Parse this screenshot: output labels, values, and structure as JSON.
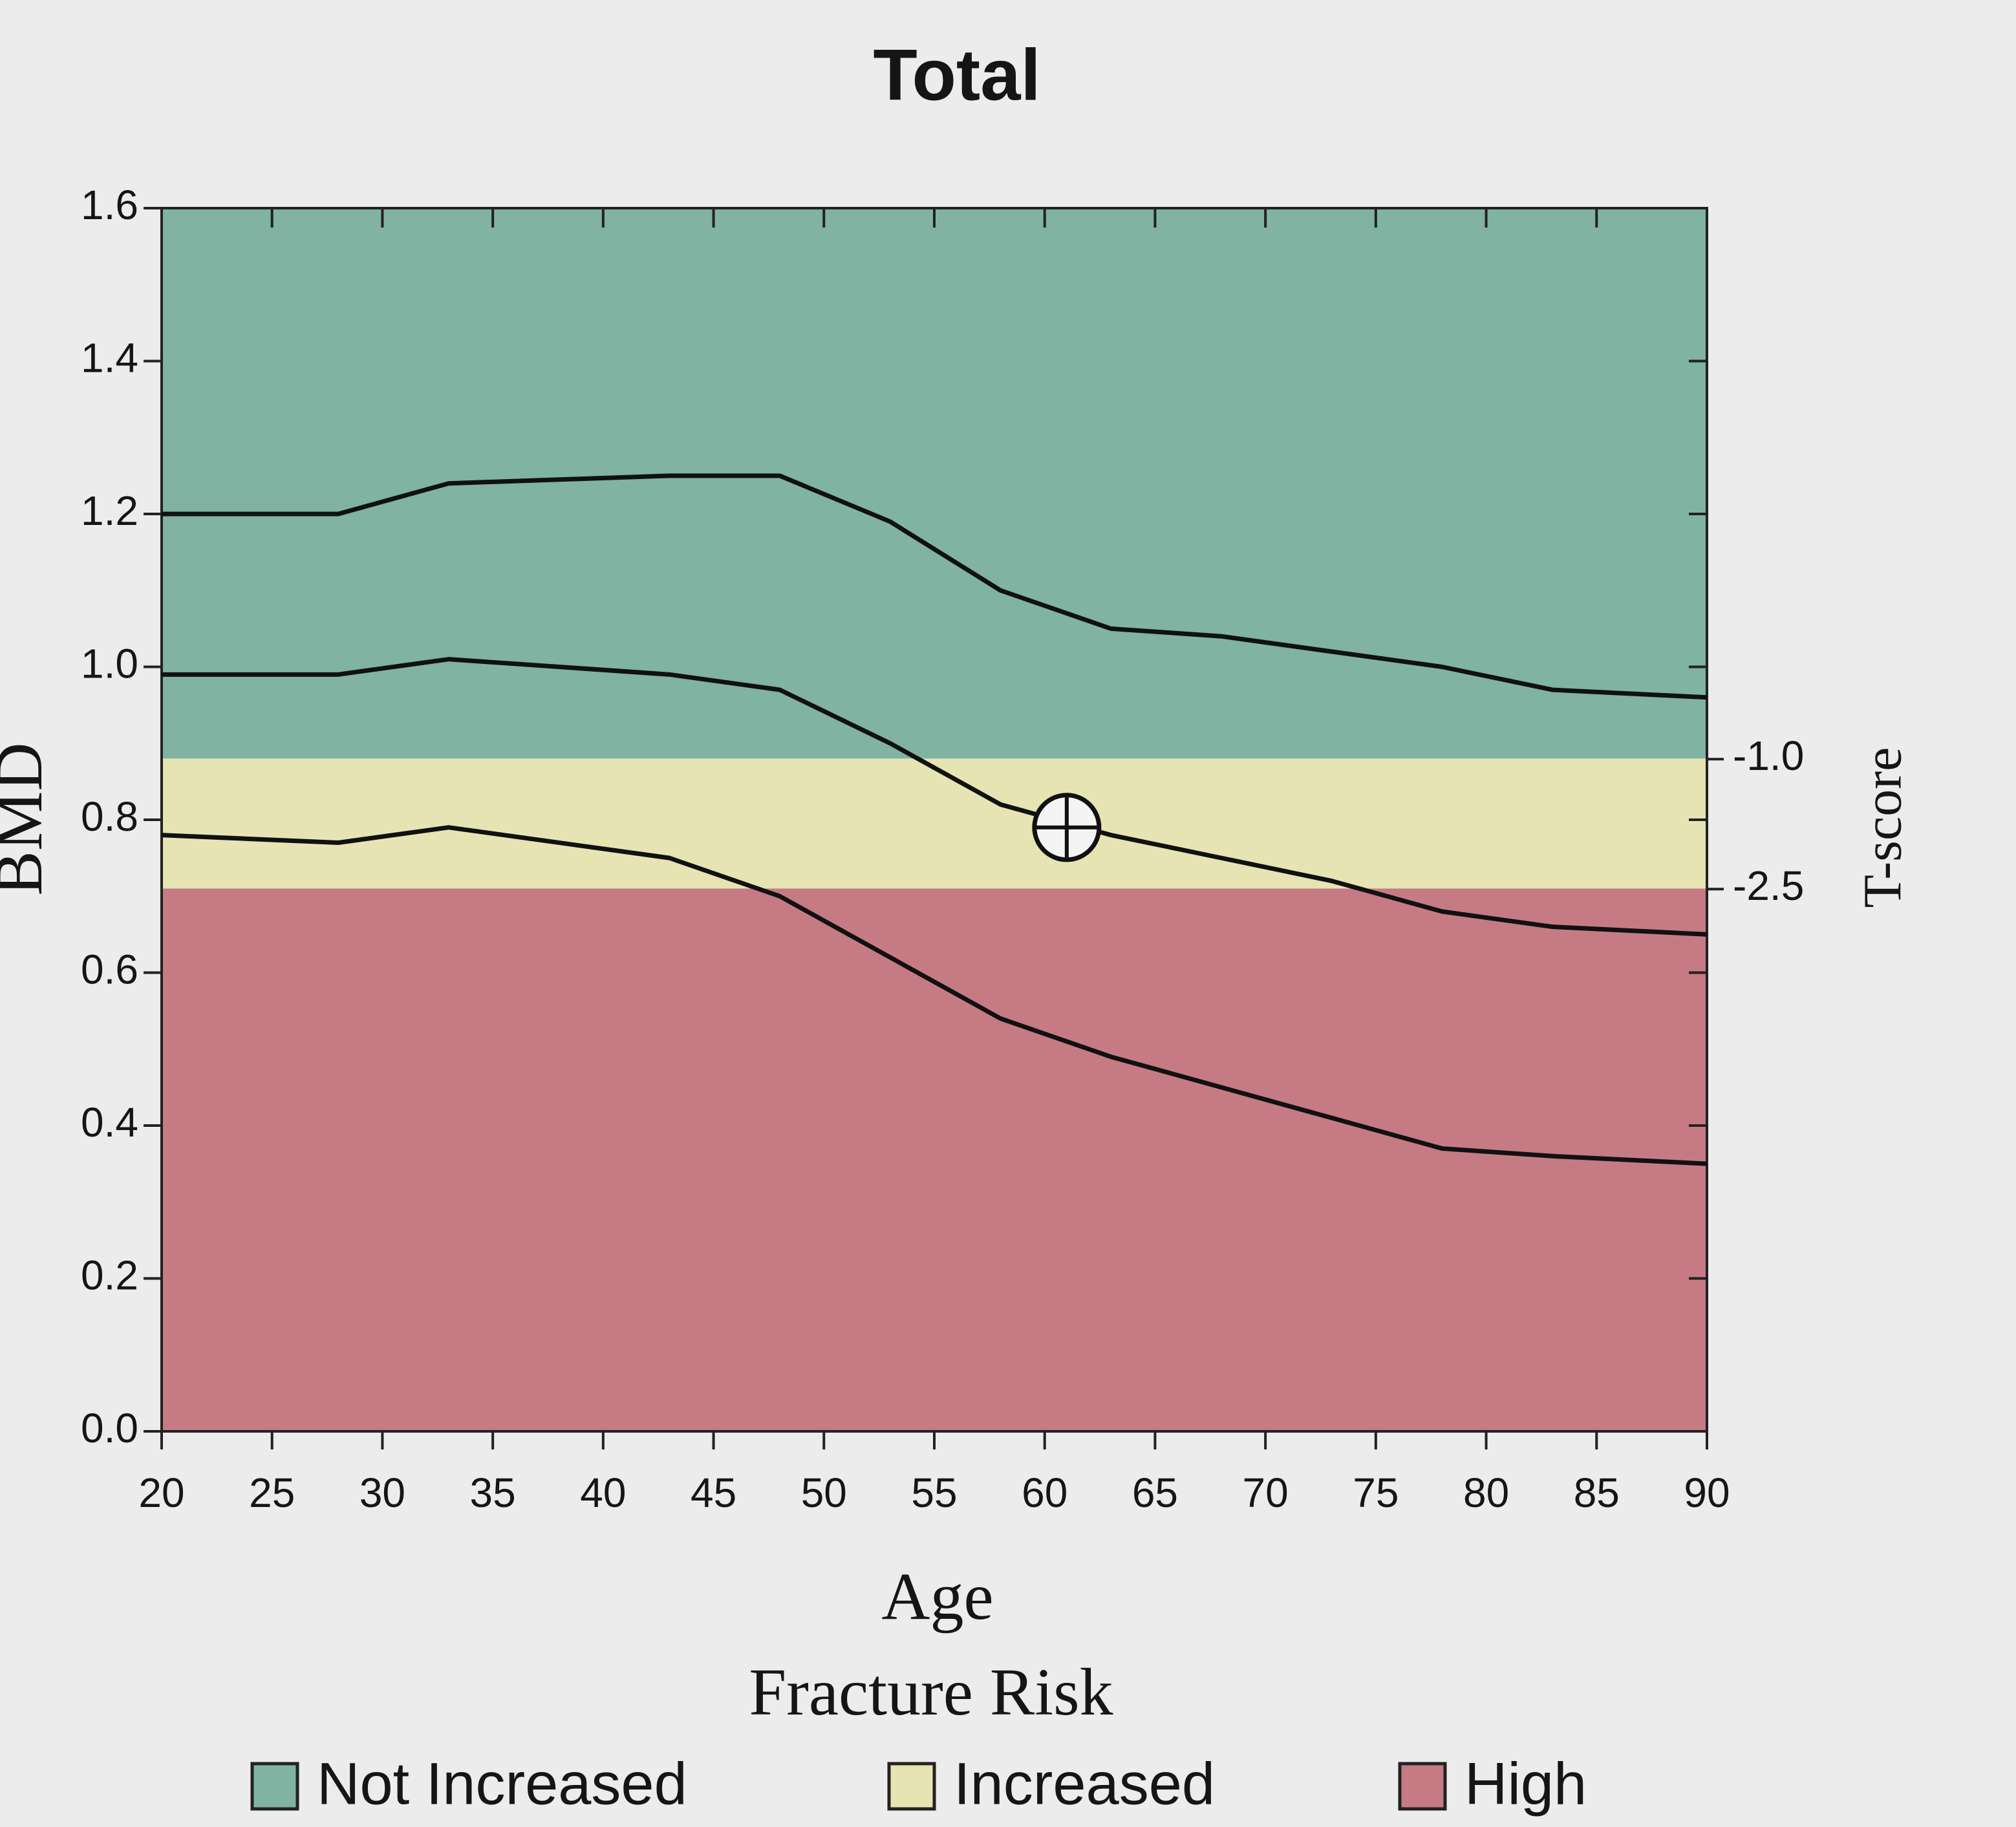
{
  "chart_data": {
    "type": "line",
    "title": "Total",
    "xlabel": "Age",
    "ylabel": "BMD",
    "y2label": "T-score",
    "legend_title": "Fracture Risk",
    "xlim": [
      20,
      90
    ],
    "xticks": [
      20,
      25,
      30,
      35,
      40,
      45,
      50,
      55,
      60,
      65,
      70,
      75,
      80,
      85,
      90
    ],
    "ylim": [
      0,
      1.6
    ],
    "yticks": [
      {
        "value": 0,
        "label": "0.0"
      },
      0.2,
      0.4,
      0.6,
      0.8,
      {
        "value": 1,
        "label": "1.0"
      },
      1.2,
      1.4,
      1.6
    ],
    "y2lim": [
      -8.76,
      5.36
    ],
    "y2ticks": [
      {
        "value": -1,
        "label": "-1.0"
      },
      -2.5
    ],
    "bands": [
      {
        "name": "Not Increased",
        "color": "#80b3a1",
        "from": 0.88,
        "to": 1.6
      },
      {
        "name": "Increased",
        "color": "#e6e4b2",
        "from": 0.71,
        "to": 0.88
      },
      {
        "name": "High",
        "color": "#c67b84",
        "from": 0,
        "to": 0.71
      }
    ],
    "x": [
      20,
      28,
      33,
      43,
      48,
      53,
      58,
      63,
      68,
      73,
      78,
      83,
      90
    ],
    "series": [
      {
        "color": "#111111",
        "values": [
          1.2,
          1.2,
          1.24,
          1.25,
          1.25,
          1.19,
          1.1,
          1.05,
          1.04,
          1.02,
          1.0,
          0.97,
          0.96
        ]
      },
      {
        "color": "#111111",
        "values": [
          0.99,
          0.99,
          1.01,
          0.99,
          0.97,
          0.9,
          0.82,
          0.78,
          0.75,
          0.72,
          0.68,
          0.66,
          0.65
        ]
      },
      {
        "color": "#111111",
        "values": [
          0.78,
          0.77,
          0.79,
          0.75,
          0.7,
          0.62,
          0.54,
          0.49,
          0.45,
          0.41,
          0.37,
          0.36,
          0.35
        ]
      }
    ],
    "point": {
      "x": 61,
      "y": 0.79
    }
  }
}
